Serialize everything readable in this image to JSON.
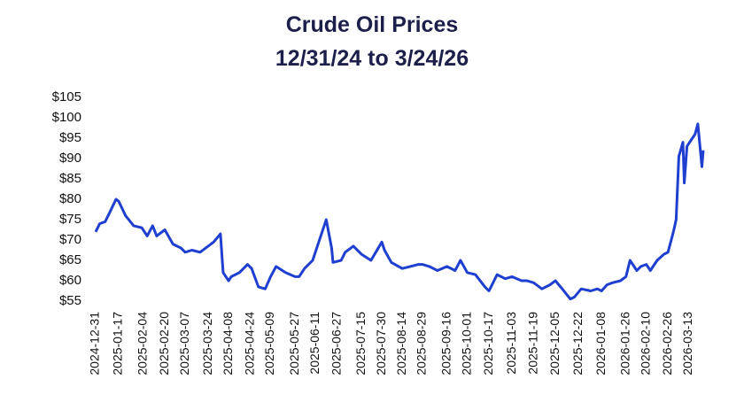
{
  "chart_data": {
    "type": "line",
    "title": "Crude Oil Prices",
    "subtitle": "12/31/24 to 3/24/26",
    "x": [
      "2024-12-31",
      "2025-01-03",
      "2025-01-07",
      "2025-01-10",
      "2025-01-15",
      "2025-01-17",
      "2025-01-22",
      "2025-01-28",
      "2025-02-03",
      "2025-02-07",
      "2025-02-11",
      "2025-02-14",
      "2025-02-20",
      "2025-02-26",
      "2025-03-04",
      "2025-03-07",
      "2025-03-12",
      "2025-03-18",
      "2025-03-24",
      "2025-03-28",
      "2025-04-02",
      "2025-04-04",
      "2025-04-08",
      "2025-04-10",
      "2025-04-16",
      "2025-04-22",
      "2025-04-25",
      "2025-04-30",
      "2025-05-05",
      "2025-05-09",
      "2025-05-13",
      "2025-05-20",
      "2025-05-27",
      "2025-05-30",
      "2025-06-03",
      "2025-06-09",
      "2025-06-12",
      "2025-06-16",
      "2025-06-19",
      "2025-06-23",
      "2025-06-24",
      "2025-06-30",
      "2025-07-03",
      "2025-07-09",
      "2025-07-15",
      "2025-07-22",
      "2025-07-30",
      "2025-08-01",
      "2025-08-06",
      "2025-08-14",
      "2025-08-20",
      "2025-08-26",
      "2025-08-29",
      "2025-09-03",
      "2025-09-09",
      "2025-09-16",
      "2025-09-22",
      "2025-09-26",
      "2025-10-01",
      "2025-10-07",
      "2025-10-14",
      "2025-10-17",
      "2025-10-23",
      "2025-10-29",
      "2025-11-03",
      "2025-11-10",
      "2025-11-14",
      "2025-11-19",
      "2025-11-25",
      "2025-12-01",
      "2025-12-05",
      "2025-12-10",
      "2025-12-16",
      "2025-12-19",
      "2025-12-24",
      "2025-12-31",
      "2026-01-05",
      "2026-01-08",
      "2026-01-12",
      "2026-01-16",
      "2026-01-22",
      "2026-01-26",
      "2026-01-29",
      "2026-02-03",
      "2026-02-06",
      "2026-02-10",
      "2026-02-13",
      "2026-02-18",
      "2026-02-23",
      "2026-02-26",
      "2026-03-02",
      "2026-03-04",
      "2026-03-06",
      "2026-03-09",
      "2026-03-10",
      "2026-03-12",
      "2026-03-16",
      "2026-03-18",
      "2026-03-20",
      "2026-03-23",
      "2026-03-24"
    ],
    "series": [
      {
        "name": "Crude Oil",
        "color": "#1f3fd0",
        "values": [
          72,
          74,
          74.5,
          76.5,
          80,
          79.5,
          76,
          73.5,
          73,
          71,
          73.5,
          71,
          72.5,
          69,
          68,
          67,
          67.5,
          67,
          68.5,
          69.5,
          71.5,
          62,
          60,
          61,
          62,
          64,
          63,
          58.5,
          58,
          61,
          63.5,
          62,
          61,
          61,
          63,
          65,
          68,
          72,
          75,
          68,
          64.5,
          65,
          67,
          68.5,
          66.5,
          65,
          69.5,
          67.5,
          64.5,
          63,
          63.5,
          64,
          64,
          63.5,
          62.5,
          63.5,
          62.5,
          65,
          62,
          61.5,
          58.5,
          57.5,
          61.5,
          60.5,
          61,
          60,
          60,
          59.5,
          58,
          59,
          60,
          58,
          55.5,
          56,
          58,
          57.5,
          58,
          57.5,
          59,
          59.5,
          60,
          61,
          65,
          62.5,
          63.5,
          64,
          62.5,
          65,
          66.5,
          67,
          72,
          75,
          90.5,
          94,
          84,
          93,
          95,
          96,
          98.5,
          88,
          92
        ]
      }
    ],
    "xlim": [
      "2024-12-31",
      "2026-03-24"
    ],
    "xticks": [
      "2024-12-31",
      "2025-01-17",
      "2025-02-04",
      "2025-02-20",
      "2025-03-07",
      "2025-03-24",
      "2025-04-08",
      "2025-04-24",
      "2025-05-09",
      "2025-05-27",
      "2025-06-11",
      "2025-06-27",
      "2025-07-15",
      "2025-07-30",
      "2025-08-14",
      "2025-08-29",
      "2025-09-16",
      "2025-10-01",
      "2025-10-17",
      "2025-11-03",
      "2025-11-19",
      "2025-12-05",
      "2025-12-22",
      "2026-01-08",
      "2026-01-26",
      "2026-02-10",
      "2026-02-26",
      "2026-03-13"
    ],
    "ylim": [
      55,
      105
    ],
    "yticks": [
      {
        "value": 55,
        "label": "$55"
      },
      {
        "value": 60,
        "label": "$60"
      },
      {
        "value": 65,
        "label": "$65"
      },
      {
        "value": 70,
        "label": "$70"
      },
      {
        "value": 75,
        "label": "$75"
      },
      {
        "value": 80,
        "label": "$80"
      },
      {
        "value": 85,
        "label": "$85"
      },
      {
        "value": 90,
        "label": "$90"
      },
      {
        "value": 95,
        "label": "$95"
      },
      {
        "value": 100,
        "label": "$100"
      },
      {
        "value": 105,
        "label": "$105"
      }
    ],
    "grid": false
  }
}
